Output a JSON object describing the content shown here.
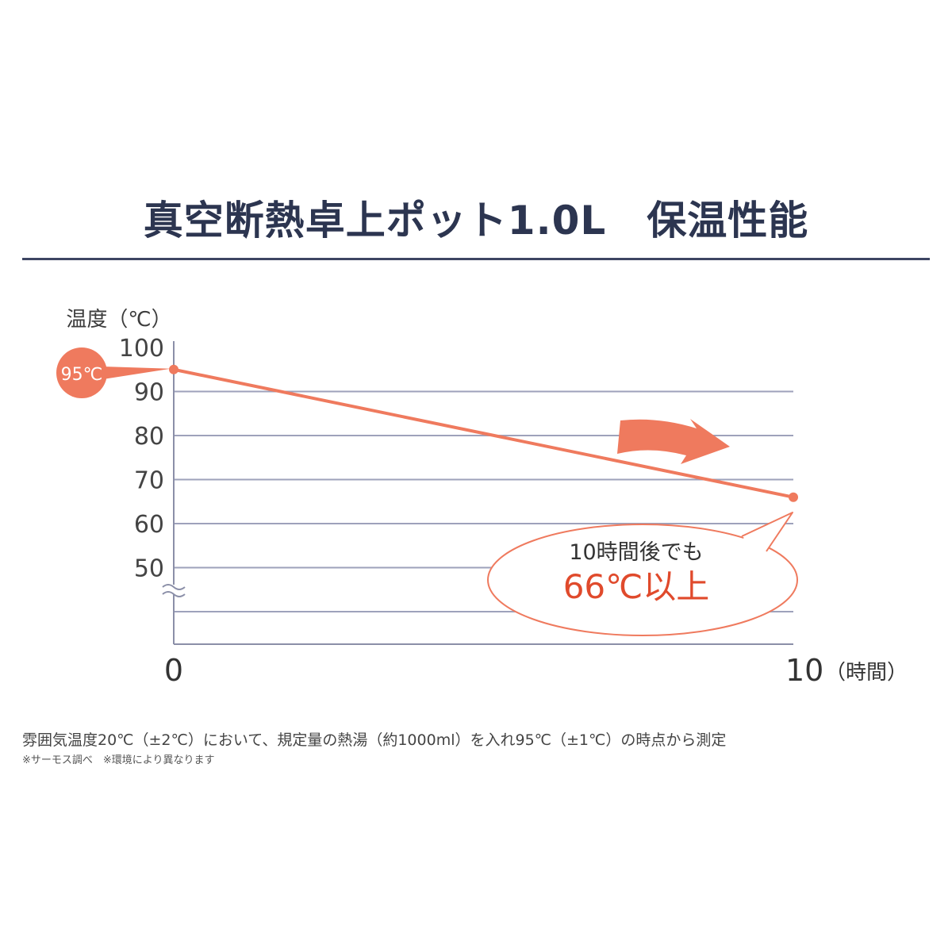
{
  "title": "真空断熱卓上ポット1.0L　保温性能",
  "colors": {
    "accent": "#ef7a5e",
    "accent_text": "#e04a2c",
    "grid": "#9ea2bb",
    "axis": "#8b8fa8",
    "title": "#2c3550"
  },
  "chart_data": {
    "type": "line",
    "ylabel": "温度（℃）",
    "xlabel": "（時間）",
    "y_ticks": [
      100,
      90,
      80,
      70,
      60,
      50
    ],
    "y_axis_break": true,
    "x_ticks": [
      "0",
      "10"
    ],
    "xlim": [
      0,
      10
    ],
    "series": [
      {
        "x": [
          0,
          10
        ],
        "y": [
          95,
          66
        ]
      }
    ],
    "start_label": "95℃",
    "callout": {
      "line1": "10時間後でも",
      "line2": "66℃以上"
    },
    "grid": true
  },
  "footnote": "雰囲気温度20℃（±2℃）において、規定量の熱湯（約1000ml）を入れ95℃（±1℃）の時点から測定",
  "footnote_sub": "※サーモス調べ　※環境により異なります"
}
